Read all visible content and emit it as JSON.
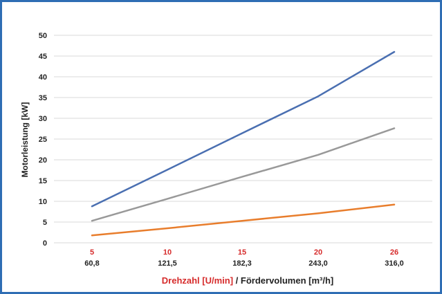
{
  "chart_data": {
    "type": "line",
    "categories": [
      "5",
      "10",
      "15",
      "20",
      "26"
    ],
    "categories_secondary": [
      "60,8",
      "121,5",
      "182,3",
      "243,0",
      "316,0"
    ],
    "series": [
      {
        "color": "#4a6fb1",
        "values": [
          8.8,
          17.6,
          26.4,
          35.3,
          46.0
        ]
      },
      {
        "color": "#999999",
        "values": [
          5.3,
          10.6,
          15.9,
          21.2,
          27.6
        ]
      },
      {
        "color": "#e87d2c",
        "values": [
          1.8,
          3.5,
          5.3,
          7.1,
          9.2
        ]
      }
    ],
    "ylabel": "Motorleistung [kW]",
    "xlabel_part1": "Drehzahl [U/min]",
    "xlabel_part2": " / Fördervolumen [m³/h]",
    "yticks": [
      0,
      5,
      10,
      15,
      20,
      25,
      30,
      35,
      40,
      45,
      50
    ],
    "ylim": [
      0,
      50
    ],
    "grid": true,
    "colors": {
      "frame": "#2e6db4",
      "grid": "#d9d9d9",
      "primary_x_ticks": "#d62b2b",
      "xlabel_part1": "#d62b2b",
      "text": "#222222"
    }
  }
}
